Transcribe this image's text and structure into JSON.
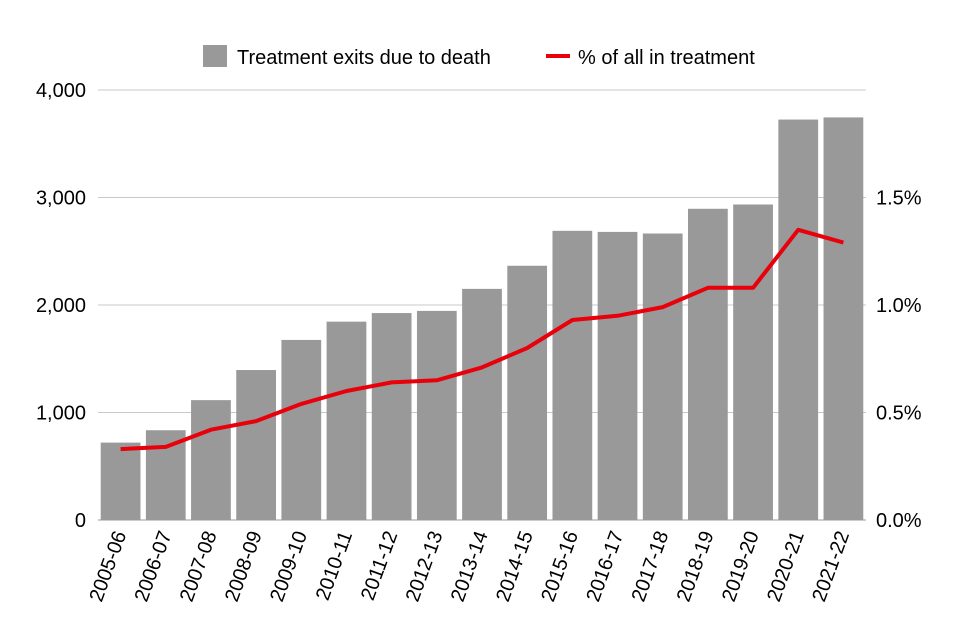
{
  "chart_data": {
    "type": "bar",
    "categories": [
      "2005-06",
      "2006-07",
      "2007-08",
      "2008-09",
      "2009-10",
      "2010-11",
      "2011-12",
      "2012-13",
      "2013-14",
      "2014-15",
      "2015-16",
      "2016-17",
      "2017-18",
      "2018-19",
      "2019-20",
      "2020-21",
      "2021-22"
    ],
    "series": [
      {
        "name": "Treatment exits due to death",
        "type": "bar",
        "axis": "left",
        "color": "#999999",
        "values": [
          720,
          835,
          1115,
          1395,
          1675,
          1845,
          1925,
          1945,
          2150,
          2365,
          2690,
          2680,
          2665,
          2895,
          2935,
          3725,
          3745
        ]
      },
      {
        "name": "% of all in treatment",
        "type": "line",
        "axis": "right",
        "color": "#e8000b",
        "values": [
          0.33,
          0.34,
          0.42,
          0.46,
          0.54,
          0.6,
          0.64,
          0.65,
          0.71,
          0.8,
          0.93,
          0.95,
          0.99,
          1.08,
          1.08,
          1.35,
          1.29
        ]
      }
    ],
    "y_left": {
      "ylim": [
        0,
        4000
      ],
      "ticks": [
        0,
        1000,
        2000,
        3000,
        4000
      ],
      "tick_labels": [
        "0",
        "1,000",
        "2,000",
        "3,000",
        "4,000"
      ]
    },
    "y_right": {
      "ylim": [
        0,
        2.0
      ],
      "ticks": [
        0,
        0.5,
        1.0,
        1.5
      ],
      "tick_labels": [
        "0.0%",
        "0.5%",
        "1.0%",
        "1.5%"
      ]
    },
    "grid": true,
    "legend": "top-center",
    "title": "",
    "xlabel": "",
    "ylabel": ""
  }
}
